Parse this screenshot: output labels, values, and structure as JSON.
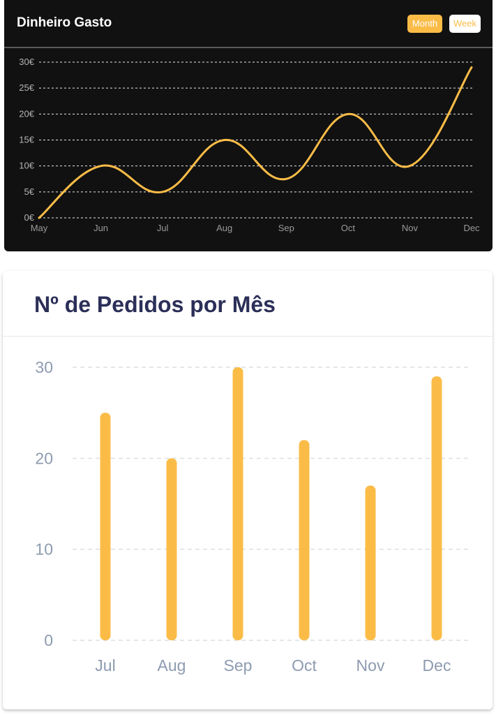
{
  "colors": {
    "accent": "#fbbc47",
    "dark_bg": "#111111",
    "title_dark": "#2b2f58",
    "axis_text_light": "#8d9bb0"
  },
  "spending_card": {
    "title": "Dinheiro Gasto",
    "buttons": {
      "month_label": "Month",
      "week_label": "Week"
    }
  },
  "orders_card": {
    "title": "Nº de Pedidos por Mês"
  },
  "chart_data": [
    {
      "type": "line",
      "title": "Dinheiro Gasto",
      "x": [
        "May",
        "Jun",
        "Jul",
        "Aug",
        "Sep",
        "Oct",
        "Nov",
        "Dec"
      ],
      "series": [
        {
          "values": [
            0,
            10,
            5,
            15,
            7.5,
            20,
            10,
            29
          ]
        }
      ],
      "ylim": [
        0,
        30
      ],
      "yticks": [
        "0€",
        "5€",
        "10€",
        "15€",
        "20€",
        "25€",
        "30€"
      ],
      "grid": true,
      "smooth": true
    },
    {
      "type": "bar",
      "title": "Nº de Pedidos por Mês",
      "categories": [
        "Jul",
        "Aug",
        "Sep",
        "Oct",
        "Nov",
        "Dec"
      ],
      "values": [
        25,
        20,
        30,
        22,
        17,
        29
      ],
      "ylim": [
        0,
        30
      ],
      "yticks": [
        "0",
        "10",
        "20",
        "30"
      ],
      "grid": true
    }
  ]
}
